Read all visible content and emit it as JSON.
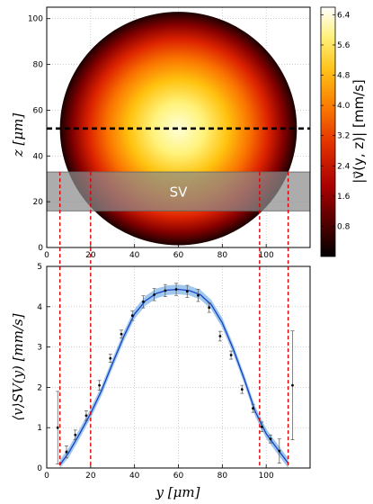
{
  "chart_data": [
    {
      "type": "heatmap",
      "title": "",
      "xlabel": "",
      "ylabel": "z [μm]",
      "x_ticks": [
        "0",
        "20",
        "40",
        "60",
        "80",
        "100"
      ],
      "y_ticks": [
        "0",
        "20",
        "40",
        "60",
        "80",
        "100"
      ],
      "xlim": [
        0,
        120
      ],
      "ylim": [
        0,
        105
      ],
      "grid": true,
      "field": {
        "shape": "ellipse",
        "center_y_um": 60,
        "center_z_um": 52,
        "semi_axis_y_um": 54,
        "semi_axis_z_um": 51
      },
      "colorbar": {
        "label": "|v⃗(y, z)| [mm/s]",
        "range": [
          0,
          6.6
        ],
        "ticks": [
          "0.8",
          "1.6",
          "2.4",
          "3.2",
          "4.0",
          "4.8",
          "5.6",
          "6.4"
        ]
      },
      "dashed_line_z": 52,
      "sv_band": {
        "label": "SV",
        "z_range": [
          16,
          33
        ]
      },
      "sv_ticks_y": [
        6,
        20,
        97,
        110
      ]
    },
    {
      "type": "line",
      "title": "",
      "xlabel": "y [μm]",
      "ylabel": "⟨v⟩SV(y) [mm/s]",
      "x_ticks": [
        "0",
        "20",
        "40",
        "60",
        "80",
        "100"
      ],
      "y_ticks": [
        "0",
        "1",
        "2",
        "3",
        "4",
        "5"
      ],
      "xlim": [
        0,
        120
      ],
      "ylim": [
        0,
        5
      ],
      "grid": true,
      "fit_curve": {
        "x": [
          6,
          10,
          15,
          20,
          25,
          30,
          35,
          40,
          45,
          50,
          55,
          60,
          65,
          70,
          75,
          80,
          85,
          90,
          95,
          100,
          105,
          110
        ],
        "y": [
          0.08,
          0.38,
          0.85,
          1.35,
          1.92,
          2.6,
          3.25,
          3.82,
          4.15,
          4.33,
          4.41,
          4.43,
          4.4,
          4.3,
          4.05,
          3.6,
          2.95,
          2.2,
          1.4,
          0.85,
          0.48,
          0.12
        ]
      },
      "band_halfwidth": 0.12,
      "points": {
        "x": [
          5,
          9,
          13,
          18,
          24,
          29,
          34,
          39,
          44,
          49,
          54,
          59,
          64,
          69,
          74,
          79,
          84,
          89,
          94,
          98,
          102,
          106,
          112
        ],
        "y": [
          1.0,
          0.4,
          0.82,
          1.3,
          2.05,
          2.72,
          3.32,
          3.78,
          4.12,
          4.3,
          4.4,
          4.43,
          4.38,
          4.28,
          3.98,
          3.27,
          2.8,
          1.95,
          1.48,
          1.02,
          0.72,
          0.42,
          2.05
        ],
        "err": [
          0.9,
          0.15,
          0.12,
          0.12,
          0.12,
          0.1,
          0.1,
          0.12,
          0.15,
          0.15,
          0.15,
          0.15,
          0.15,
          0.15,
          0.12,
          0.12,
          0.1,
          0.1,
          0.1,
          0.12,
          0.1,
          0.3,
          1.35
        ]
      },
      "sv_ticks_y": [
        6,
        20,
        97,
        110
      ]
    }
  ]
}
